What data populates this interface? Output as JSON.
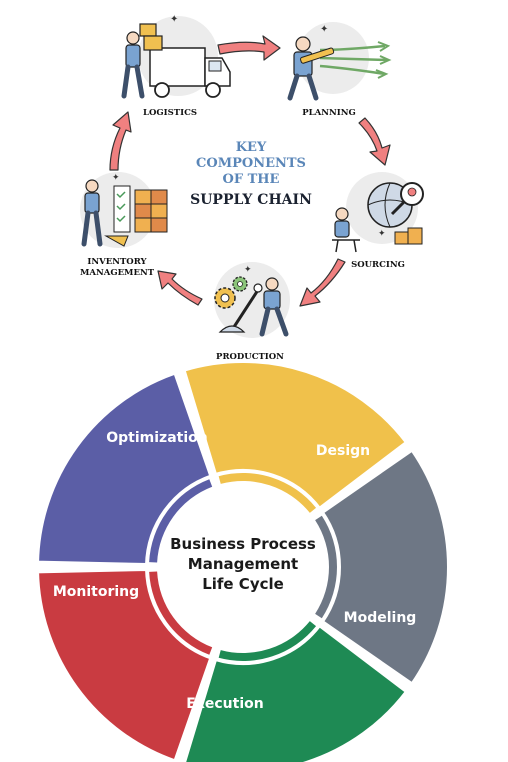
{
  "supply_chain": {
    "title_line1": "KEY",
    "title_line2": "COMPONENTS",
    "title_line3": "OF THE",
    "title_line4": "SUPPLY CHAIN",
    "stages": {
      "logistics": "LOGISTICS",
      "planning": "PLANNING",
      "sourcing": "SOURCING",
      "production": "PRODUCTION",
      "inventory_line1": "INVENTORY",
      "inventory_line2": "MANAGEMENT"
    },
    "colors": {
      "arrow": "#f08080",
      "title_accent": "#5a86b8",
      "title_dark": "#1b2230"
    }
  },
  "bpm_cycle": {
    "center_line1": "Business Process",
    "center_line2": "Management",
    "center_line3": "Life Cycle",
    "segments": {
      "optimization": "Optimization",
      "design": "Design",
      "modeling": "Modeling",
      "execution": "Execution",
      "monitoring": "Monitoring"
    },
    "colors": {
      "optimization": "#5b5ea6",
      "design": "#f0c14b",
      "modeling": "#6e7785",
      "execution": "#1e8a54",
      "monitoring": "#c93b41"
    }
  }
}
